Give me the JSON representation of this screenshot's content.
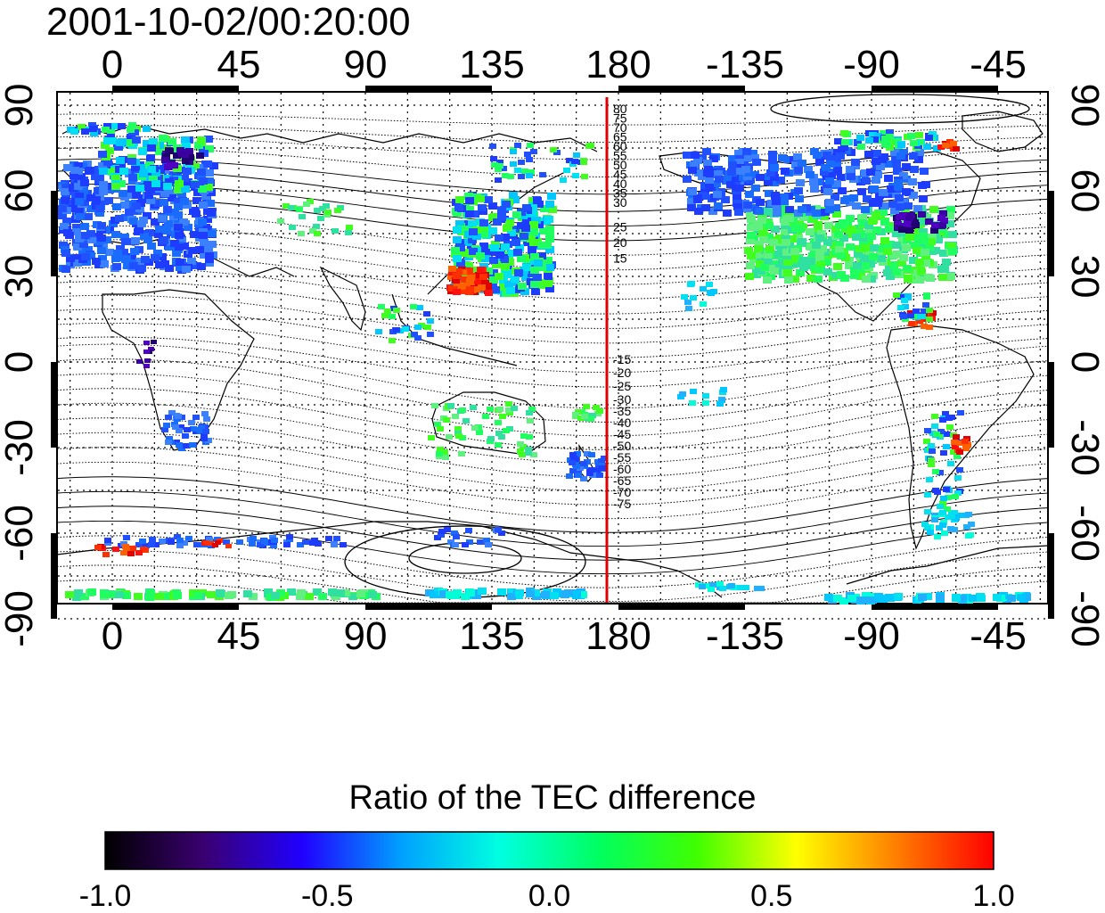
{
  "title": "2001-10-02/00:20:00",
  "map": {
    "x_ticks": [
      "0",
      "45",
      "90",
      "135",
      "180",
      "-135",
      "-90",
      "-45"
    ],
    "y_ticks": [
      "90",
      "60",
      "30",
      "0",
      "-30",
      "-60",
      "-90"
    ],
    "meridian_line_color": "#e00000",
    "contour_labels_north": [
      "80",
      "75",
      "70",
      "65",
      "60",
      "55",
      "50",
      "45",
      "40",
      "35",
      "30",
      "25",
      "20",
      "15"
    ],
    "contour_labels_south": [
      "-15",
      "-20",
      "-25",
      "-30",
      "-35",
      "-40",
      "-45",
      "-50",
      "-55",
      "-60",
      "-65",
      "-70",
      "-75"
    ]
  },
  "colorbar": {
    "title": "Ratio of the TEC difference",
    "ticks": [
      "-1.0",
      "-0.5",
      "0.0",
      "0.5",
      "1.0"
    ],
    "colors": [
      "#000000",
      "#3a0070",
      "#2000ff",
      "#00a0ff",
      "#00ffe0",
      "#00ff60",
      "#40ff00",
      "#ffff00",
      "#ff8000",
      "#ff0000"
    ]
  }
}
